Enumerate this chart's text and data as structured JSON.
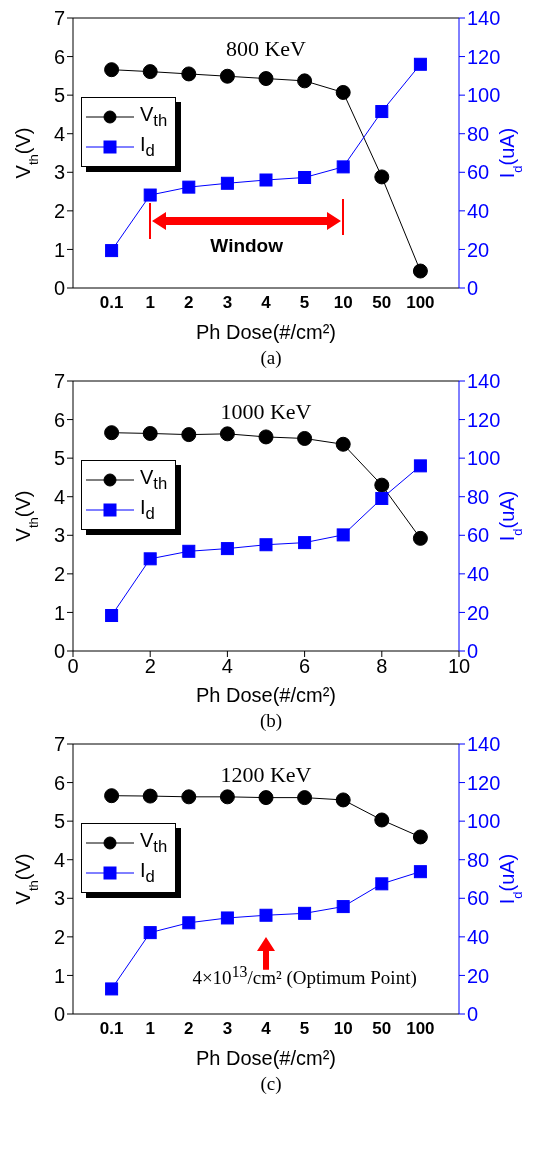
{
  "chart_data": [
    {
      "type": "line",
      "title": "800 KeV",
      "categories": [
        "0.1",
        "1",
        "2",
        "3",
        "4",
        "5",
        "10",
        "50",
        "100"
      ],
      "xlabel": "Ph Dose(#/cm²)",
      "ylabel": "V$_{th}$(V)",
      "y2label": "I$_{d}$(uA)",
      "ylim": [
        0,
        7
      ],
      "yticks": [
        0,
        1,
        2,
        3,
        4,
        5,
        6,
        7
      ],
      "y2lim": [
        0,
        140
      ],
      "y2ticks": [
        0,
        20,
        40,
        60,
        80,
        100,
        120,
        140
      ],
      "legend": "left",
      "annotations": [
        "Window",
        "(a)"
      ],
      "series": [
        {
          "name": "V$_{th}$",
          "color": "#000000",
          "marker": "circle",
          "values": [
            5.66,
            5.61,
            5.55,
            5.49,
            5.43,
            5.37,
            5.07,
            2.88,
            0.44
          ]
        },
        {
          "name": "I$_{d}$",
          "color": "#0000ff",
          "marker": "square",
          "axis": "y2",
          "values": [
            19.4,
            48.2,
            52.3,
            54.3,
            56,
            57.3,
            62.8,
            91.5,
            116
          ]
        }
      ]
    },
    {
      "type": "line",
      "title": "1000 KeV",
      "x": [
        1,
        2,
        3,
        4,
        5,
        6,
        7,
        8,
        9
      ],
      "xlim": [
        0,
        10
      ],
      "xticks": [
        0,
        2,
        4,
        6,
        8,
        10
      ],
      "xlabel": "Ph Dose(#/cm²)",
      "ylabel": "V$_{th}$(V)",
      "y2label": "I$_{d}$(uA)",
      "ylim": [
        0,
        7
      ],
      "yticks": [
        0,
        1,
        2,
        3,
        4,
        5,
        6,
        7
      ],
      "y2lim": [
        0,
        140
      ],
      "y2ticks": [
        0,
        20,
        40,
        60,
        80,
        100,
        120,
        140
      ],
      "legend": "left",
      "annotations": [
        "(b)"
      ],
      "series": [
        {
          "name": "V$_{th}$",
          "color": "#000000",
          "marker": "circle",
          "values": [
            5.66,
            5.64,
            5.61,
            5.63,
            5.55,
            5.51,
            5.36,
            4.3,
            2.92
          ]
        },
        {
          "name": "I$_{d}$",
          "color": "#0000ff",
          "marker": "square",
          "axis": "y2",
          "values": [
            18.4,
            47.8,
            51.7,
            53.1,
            55.1,
            56.2,
            60.2,
            79.1,
            96
          ]
        }
      ]
    },
    {
      "type": "line",
      "title": "1200 KeV",
      "categories": [
        "0.1",
        "1",
        "2",
        "3",
        "4",
        "5",
        "10",
        "50",
        "100"
      ],
      "xlabel": "Ph Dose(#/cm²)",
      "ylabel": "V$_{th}$(V)",
      "y2label": "I$_{d}$(uA)",
      "ylim": [
        0,
        7
      ],
      "yticks": [
        0,
        1,
        2,
        3,
        4,
        5,
        6,
        7
      ],
      "y2lim": [
        0,
        140
      ],
      "y2ticks": [
        0,
        20,
        40,
        60,
        80,
        100,
        120,
        140
      ],
      "legend": "left",
      "annotations": [
        "4×10$^{13}$/cm² (Optimum Point)",
        "(c)"
      ],
      "series": [
        {
          "name": "V$_{th}$",
          "color": "#000000",
          "marker": "circle",
          "values": [
            5.66,
            5.65,
            5.63,
            5.63,
            5.61,
            5.61,
            5.55,
            5.03,
            4.59
          ]
        },
        {
          "name": "I$_{d}$",
          "color": "#0000ff",
          "marker": "square",
          "axis": "y2",
          "values": [
            13,
            42.2,
            47.3,
            49.8,
            51.2,
            52.2,
            55.7,
            67.5,
            73.8
          ]
        }
      ]
    }
  ]
}
